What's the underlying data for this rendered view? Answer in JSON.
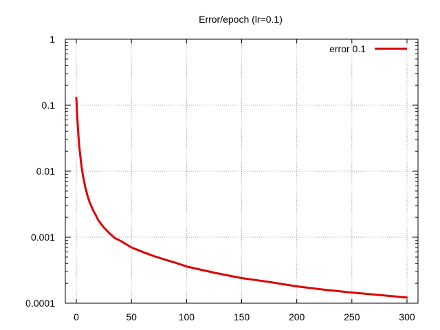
{
  "chart_data": {
    "type": "line",
    "title": "Error/epoch (lr=0.1)",
    "xlabel": "",
    "ylabel": "",
    "xlim": [
      -10,
      310
    ],
    "ylim": [
      0.0001,
      1
    ],
    "y_scale": "log",
    "grid": true,
    "legend_position": "top-right",
    "x_ticks": [
      0,
      50,
      100,
      150,
      200,
      250,
      300
    ],
    "x_tick_labels": [
      "0",
      "50",
      "100",
      "150",
      "200",
      "250",
      "300"
    ],
    "y_ticks": [
      0.0001,
      0.001,
      0.01,
      0.1,
      1
    ],
    "y_tick_labels": [
      "0.0001",
      "0.001",
      "0.01",
      "0.1",
      "1"
    ],
    "series": [
      {
        "name": "error 0.1",
        "color": "#dd0000",
        "x": [
          0,
          1,
          2,
          3,
          4,
          5,
          6,
          8,
          10,
          12,
          15,
          18,
          20,
          25,
          30,
          35,
          40,
          50,
          60,
          70,
          80,
          90,
          100,
          125,
          150,
          175,
          200,
          225,
          250,
          275,
          300
        ],
        "y": [
          0.13,
          0.06,
          0.033,
          0.021,
          0.015,
          0.011,
          0.0085,
          0.0058,
          0.0043,
          0.0034,
          0.0026,
          0.0021,
          0.0018,
          0.0014,
          0.00115,
          0.00097,
          0.00088,
          0.0007,
          0.0006,
          0.00052,
          0.00046,
          0.00041,
          0.00036,
          0.00029,
          0.00024,
          0.00021,
          0.00018,
          0.00016,
          0.000145,
          0.000133,
          0.000122
        ]
      }
    ]
  }
}
